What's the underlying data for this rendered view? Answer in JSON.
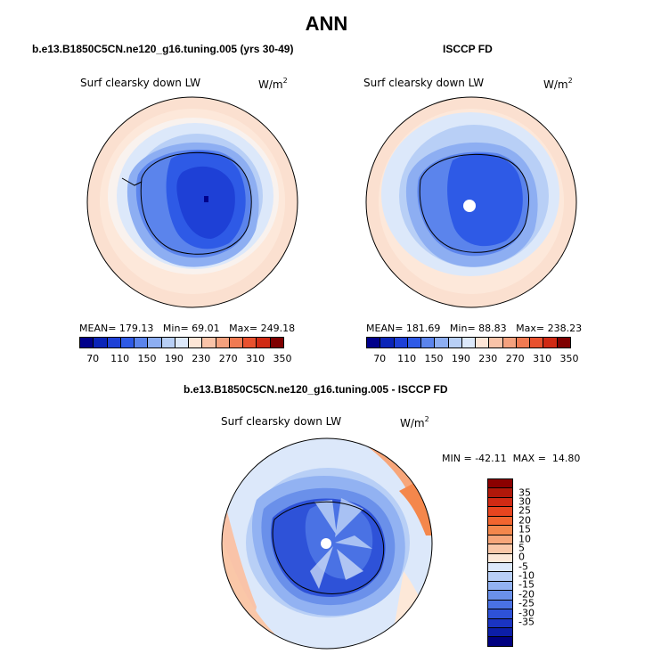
{
  "title": "ANN",
  "colors": {
    "scale": [
      "#00008b",
      "#0a24b8",
      "#1e40d6",
      "#2e5ae6",
      "#5b84ec",
      "#8daef2",
      "#b8cff6",
      "#dce8fa",
      "#fde5d6",
      "#f9c3a8",
      "#f4a17e",
      "#f07a52",
      "#e8512e",
      "#d02a14",
      "#7f0000"
    ]
  },
  "panel_left": {
    "title": "b.e13.B1850C5CN.ne120_g16.tuning.005 (yrs 30-49)",
    "variable": "Surf clearsky down LW",
    "units_base": "W/m",
    "units_exp": "2",
    "mean_label": "MEAN=",
    "mean": "179.13",
    "min_label": "Min=",
    "min": "69.01",
    "max_label": "Max=",
    "max": "249.18",
    "ticks": [
      "70",
      "110",
      "150",
      "190",
      "230",
      "270",
      "310",
      "350"
    ]
  },
  "panel_right": {
    "title": "ISCCP FD",
    "variable": "Surf clearsky down LW",
    "units_base": "W/m",
    "units_exp": "2",
    "mean_label": "MEAN=",
    "mean": "181.69",
    "min_label": "Min=",
    "min": "88.83",
    "max_label": "Max=",
    "max": "238.23",
    "ticks": [
      "70",
      "110",
      "150",
      "190",
      "230",
      "270",
      "310",
      "350"
    ]
  },
  "panel_diff": {
    "title": "b.e13.B1850C5CN.ne120_g16.tuning.005 - ISCCP FD",
    "variable": "Surf clearsky down LW",
    "units_base": "W/m",
    "units_exp": "2",
    "min_label": "MIN =",
    "min": "-42.11",
    "max_label": "MAX =",
    "max": "14.80",
    "ticks": [
      "35",
      "30",
      "25",
      "20",
      "15",
      "10",
      "5",
      "0",
      "-5",
      "-10",
      "-15",
      "-20",
      "-25",
      "-30",
      "-35"
    ],
    "colors": [
      "#8b0000",
      "#b0180a",
      "#d02a14",
      "#e8451f",
      "#f2652f",
      "#f4874c",
      "#f7a67a",
      "#fac7a8",
      "#fde8d8",
      "#dce8fa",
      "#b8cff6",
      "#92b2f2",
      "#6a90ea",
      "#4a72e4",
      "#2e52d8",
      "#1a34c2",
      "#0c1ea8",
      "#000080"
    ]
  }
}
